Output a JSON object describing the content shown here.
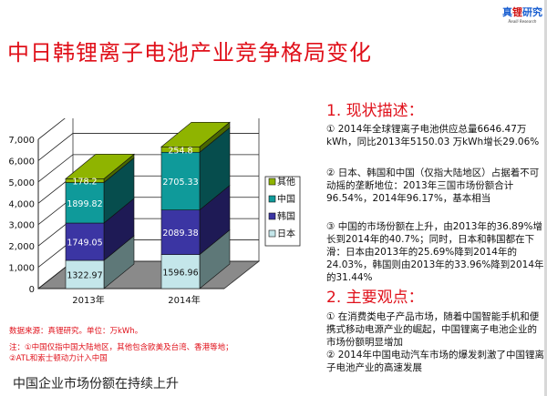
{
  "title": "中日韩锂离子电池产业竞争格局变化",
  "logo": {
    "main": "真锂研究",
    "sub": "Realli Research"
  },
  "chart_data": {
    "type": "bar",
    "stacked": true,
    "style": "3d",
    "categories": [
      "2013年",
      "2014年"
    ],
    "series": [
      {
        "name": "日本",
        "values": [
          1322.97,
          1596.96
        ],
        "color": "#c4e6ea"
      },
      {
        "name": "韩国",
        "values": [
          1749.05,
          2089.38
        ],
        "color": "#3b35a3"
      },
      {
        "name": "中国",
        "values": [
          1899.82,
          2705.33
        ],
        "color": "#0f9a9a"
      },
      {
        "name": "其他",
        "values": [
          178.2,
          254.8
        ],
        "color": "#8fb400"
      }
    ],
    "ylim": [
      0,
      7000
    ],
    "yticks": [
      "0",
      "1,000",
      "2,000",
      "3,000",
      "4,000",
      "5,000",
      "6,000",
      "7,000"
    ],
    "grid": true,
    "legend": "right"
  },
  "notes": {
    "source": "数据来源：真锂研究。单位：万kWh。",
    "note1": "注：①中国仅指中国大陆地区，其他包含欧美及台湾、香港等地；",
    "note2": "②ATL和索士顿动力计入中国"
  },
  "bottom": "中国企业市场份额在持续上升",
  "section1": {
    "heading": "1. 现状描述：",
    "items": [
      "① 2014年全球锂离子电池供应总量6646.47万kWh，同比2013年5150.03 万kWh增长29.06%",
      "② 日本、韩国和中国（仅指大陆地区）占据着不可动摇的垄断地位：2013年三国市场份额合计96.54%，2014年96.17%，基本相当",
      "③ 中国的市场份额在上升，由2013年的36.89%增长到2014年的40.7%；同时，日本和韩国都在下滑：日本由2013年的25.69%降到2014年的24.03%，韩国则由2013年的33.96%降到2014年的31.44%"
    ]
  },
  "section2": {
    "heading": "2. 主要观点：",
    "items": [
      "① 在消费类电子产品市场，随着中国智能手机和便携式移动电源产业的崛起，中国锂离子电池企业的市场份额明显增加",
      "② 2014年中国电动汽车市场的爆发刺激了中国锂离子电池产业的高速发展"
    ]
  }
}
